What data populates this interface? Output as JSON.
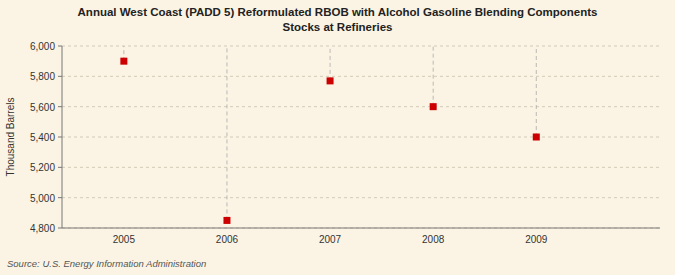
{
  "chart_data": {
    "type": "scatter",
    "title": "Annual West Coast (PADD 5) Reformulated RBOB with Alcohol Gasoline Blending Components\nStocks at Refineries",
    "y_label": "Thousand Barrels",
    "source": "Source: U.S. Energy Information Administration",
    "x": [
      2005,
      2006,
      2007,
      2008,
      2009
    ],
    "values": [
      5900,
      4850,
      5770,
      5600,
      5400
    ],
    "color": "#cc0000",
    "marker": "square",
    "xlim": [
      2004.4,
      2010.2
    ],
    "xticks": [
      2005,
      2006,
      2007,
      2008,
      2009
    ],
    "ylim": [
      4800,
      6000
    ],
    "yticks": [
      {
        "value": 4800,
        "label": "4,800"
      },
      {
        "value": 5000,
        "label": "5,000"
      },
      {
        "value": 5200,
        "label": "5,200"
      },
      {
        "value": 5400,
        "label": "5,400"
      },
      {
        "value": 5600,
        "label": "5,600"
      },
      {
        "value": 5800,
        "label": "5,800"
      },
      {
        "value": 6000,
        "label": "6,000"
      }
    ],
    "grid": true
  }
}
